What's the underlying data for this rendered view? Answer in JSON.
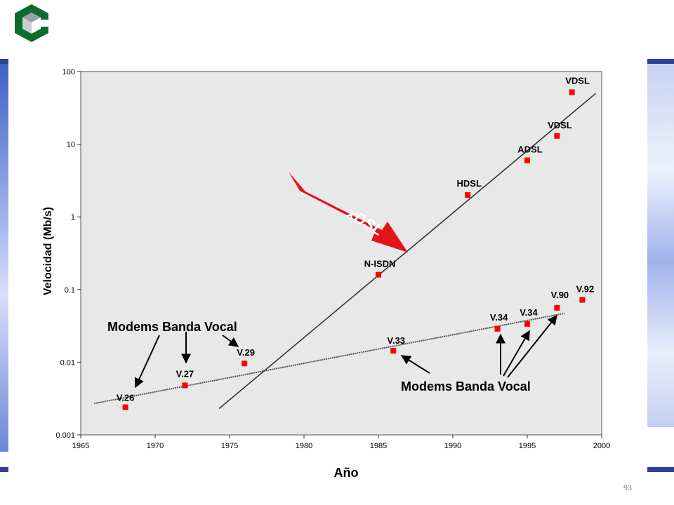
{
  "slide": {
    "page_number": "93"
  },
  "colors": {
    "accent": "#2e3f9c",
    "marker": "#ff0000",
    "arrow": "#e3131b",
    "plot_bg": "#e8e8e8",
    "logo_green": "#0d6b2e"
  },
  "chart_data": {
    "type": "scatter",
    "xlabel": "Año",
    "ylabel": "Velocidad (Mb/s)",
    "xlim": [
      1965,
      2000
    ],
    "ylim": [
      0.001,
      100
    ],
    "yscale": "log",
    "grid": false,
    "x_ticks": [
      "1965",
      "1970",
      "1975",
      "1980",
      "1985",
      "1990",
      "1995",
      "2000"
    ],
    "y_ticks": [
      "100",
      "10",
      "1",
      "0.1",
      "0.01",
      "0.001"
    ],
    "points": [
      {
        "label": "V.26",
        "x": 1968,
        "y": 0.0024
      },
      {
        "label": "V.27",
        "x": 1972,
        "y": 0.0048
      },
      {
        "label": "V.29",
        "x": 1976,
        "y": 0.0096
      },
      {
        "label": "V.33",
        "x": 1986,
        "y": 0.0144
      },
      {
        "label": "N-ISDN",
        "x": 1985,
        "y": 0.16
      },
      {
        "label": "V.34",
        "x": 1993,
        "y": 0.0288
      },
      {
        "label": "V.34",
        "x": 1995,
        "y": 0.0336
      },
      {
        "label": "V.90",
        "x": 1997,
        "y": 0.056
      },
      {
        "label": "V.92",
        "x": 1998.7,
        "y": 0.072
      },
      {
        "label": "HDSL",
        "x": 1991,
        "y": 2
      },
      {
        "label": "ADSL",
        "x": 1995,
        "y": 6
      },
      {
        "label": "VDSL",
        "x": 1997,
        "y": 13
      },
      {
        "label": "VDSL",
        "x": 1998,
        "y": 52
      }
    ],
    "trend_lines": [
      {
        "name": "Modems Banda Vocal",
        "x": [
          1965.9,
          1997.5
        ],
        "y": [
          0.0027,
          0.047
        ]
      },
      {
        "name": "xDSL",
        "x": [
          1974.3,
          1999.6
        ],
        "y": [
          0.0023,
          50
        ]
      }
    ],
    "annotations": [
      {
        "text": "Modems Banda Vocal"
      },
      {
        "text": "Modems Banda Vocal"
      },
      {
        "text": "xDSL"
      }
    ]
  }
}
